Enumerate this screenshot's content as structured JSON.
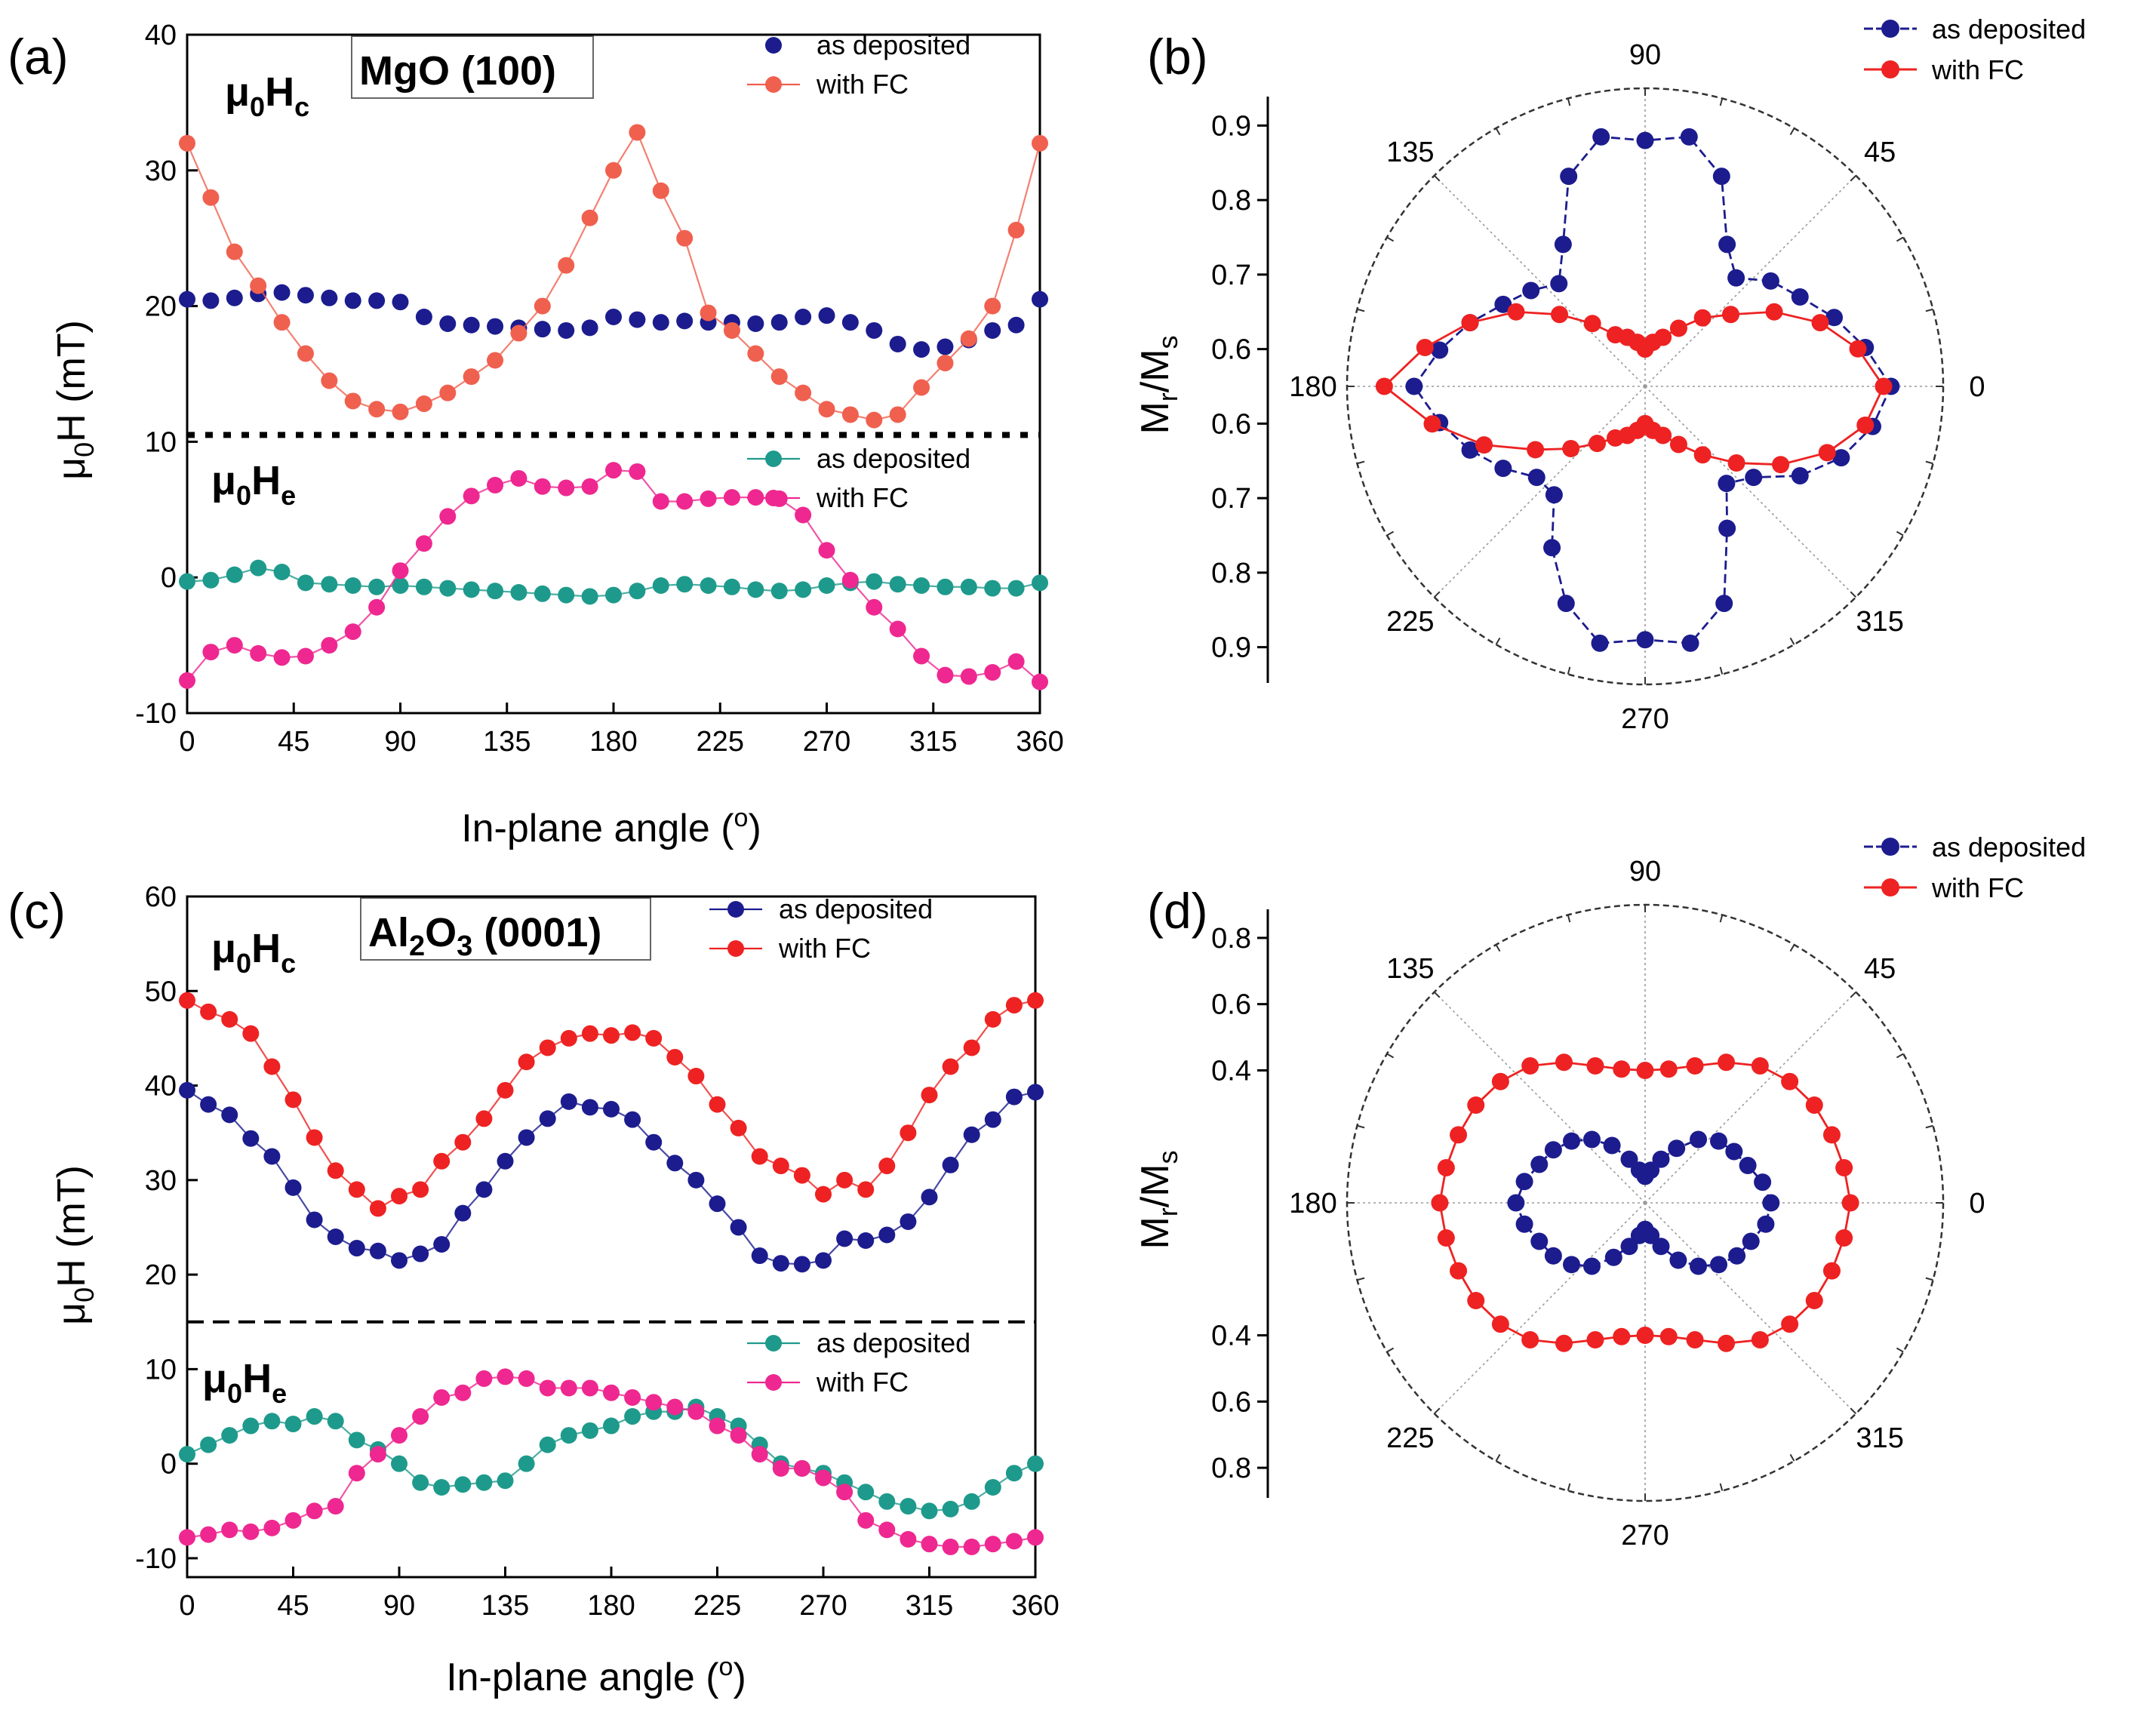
{
  "panels": {
    "a": {
      "letter": "(a)",
      "substrate": "MgO (100)",
      "hc_label": "μ0Hc",
      "he_label": "μ0He",
      "ylabel": "μ0H (mT)",
      "xlabel": "In-plane angle (o)"
    },
    "b": {
      "letter": "(b)",
      "ylabel": "Mr/Ms"
    },
    "c": {
      "letter": "(c)",
      "substrate": "Al2O3 (0001)",
      "hc_label": "μ0Hc",
      "he_label": "μ0He",
      "ylabel": "μ0H (mT)",
      "xlabel": "In-plane angle (o)"
    },
    "d": {
      "letter": "(d)",
      "ylabel": "Mr/Ms"
    }
  },
  "colors": {
    "navy": "#1c1c8f",
    "red": "#ee2222",
    "salmon": "#f0604f",
    "teal": "#1e9a8c",
    "pink": "#ee2890",
    "grid": "#9a9a9a"
  },
  "chart_data": [
    {
      "id": "a",
      "type": "scatter",
      "title": "MgO (100)",
      "xlabel": "In-plane angle (o)",
      "ylabel": "μ0H (mT)",
      "xlim": [
        0,
        360
      ],
      "ylim": [
        -10,
        40
      ],
      "xticks": [
        0,
        45,
        90,
        135,
        180,
        225,
        270,
        315,
        360
      ],
      "yticks": [
        -10,
        0,
        10,
        20,
        30,
        40
      ],
      "divider_y": 10.5,
      "legend_top": [
        "as deposited",
        "with FC"
      ],
      "legend_bottom": [
        "as deposited",
        "with FC"
      ],
      "x": [
        0,
        10,
        20,
        30,
        40,
        50,
        60,
        70,
        80,
        90,
        100,
        110,
        120,
        130,
        140,
        150,
        160,
        170,
        180,
        190,
        200,
        210,
        220,
        230,
        240,
        250,
        260,
        270,
        280,
        290,
        300,
        310,
        320,
        330,
        340,
        350,
        360
      ],
      "series": [
        {
          "name": "as deposited",
          "group": "Hc",
          "values": [
            20.5,
            20.4,
            20.6,
            20.9,
            21.0,
            20.8,
            20.6,
            20.4,
            20.4,
            20.3,
            19.2,
            18.7,
            18.6,
            18.5,
            18.4,
            18.3,
            18.2,
            18.4,
            19.2,
            19.0,
            18.8,
            18.9,
            18.8,
            18.8,
            18.7,
            18.8,
            19.2,
            19.3,
            18.8,
            18.2,
            17.2,
            16.8,
            17.0,
            17.5,
            18.2,
            18.6,
            20.5
          ]
        },
        {
          "name": "with FC",
          "group": "Hc",
          "values": [
            32.0,
            28.0,
            24.0,
            21.5,
            18.8,
            16.5,
            14.5,
            13.0,
            12.4,
            12.2,
            12.8,
            13.6,
            14.8,
            16.0,
            18.0,
            20.0,
            23.0,
            26.5,
            30.0,
            32.8,
            28.5,
            25.0,
            19.5,
            18.2,
            16.5,
            14.8,
            13.6,
            12.4,
            12.0,
            11.6,
            12.0,
            14.0,
            15.8,
            17.6,
            20.0,
            25.6,
            32.0
          ]
        },
        {
          "name": "as deposited",
          "group": "He",
          "values": [
            -0.3,
            -0.2,
            0.2,
            0.7,
            0.4,
            -0.4,
            -0.5,
            -0.6,
            -0.7,
            -0.6,
            -0.7,
            -0.8,
            -0.9,
            -1.0,
            -1.1,
            -1.2,
            -1.3,
            -1.4,
            -1.3,
            -1.0,
            -0.6,
            -0.5,
            -0.6,
            -0.7,
            -0.9,
            -1.0,
            -0.9,
            -0.6,
            -0.4,
            -0.3,
            -0.5,
            -0.6,
            -0.7,
            -0.7,
            -0.8,
            -0.8,
            -0.4
          ]
        },
        {
          "name": "with FC",
          "group": "He",
          "values": [
            -7.6,
            -5.5,
            -5.0,
            -5.6,
            -5.9,
            -5.8,
            -5.0,
            -4.0,
            -2.2,
            0.5,
            2.5,
            4.5,
            6.0,
            6.8,
            7.3,
            6.7,
            6.6,
            6.7,
            7.9,
            7.8,
            5.6,
            5.6,
            5.8,
            5.9,
            5.9,
            5.8,
            4.6,
            2.0,
            -0.2,
            -2.2,
            -3.8,
            -5.8,
            -7.2,
            -7.3,
            -7.0,
            -6.2,
            -7.7
          ]
        }
      ]
    },
    {
      "id": "b",
      "type": "polar",
      "ylabel": "Mr/Ms",
      "angle_ticks": [
        0,
        45,
        90,
        135,
        180,
        225,
        270,
        315
      ],
      "radial_ticks": [
        0.6,
        0.7,
        0.8,
        0.9
      ],
      "rlim": [
        0.55,
        0.95
      ],
      "legend": [
        "as deposited",
        "with FC"
      ],
      "theta": [
        0,
        10,
        20,
        30,
        40,
        50,
        60,
        70,
        80,
        90,
        100,
        110,
        120,
        130,
        140,
        150,
        160,
        170,
        180,
        190,
        200,
        210,
        220,
        230,
        240,
        250,
        260,
        270,
        280,
        290,
        300,
        310,
        320,
        330,
        340,
        350
      ],
      "series": [
        {
          "name": "as deposited",
          "values": [
            0.88,
            0.85,
            0.82,
            0.79,
            0.77,
            0.74,
            0.77,
            0.85,
            0.89,
            0.88,
            0.89,
            0.85,
            0.77,
            0.73,
            0.75,
            0.77,
            0.8,
            0.83,
            0.86,
            0.83,
            0.8,
            0.77,
            0.74,
            0.74,
            0.8,
            0.86,
            0.9,
            0.89,
            0.9,
            0.86,
            0.77,
            0.72,
            0.74,
            0.79,
            0.83,
            0.86
          ]
        },
        {
          "name": "with FC",
          "values": [
            0.87,
            0.84,
            0.8,
            0.75,
            0.7,
            0.67,
            0.64,
            0.62,
            0.61,
            0.6,
            0.61,
            0.62,
            0.63,
            0.66,
            0.7,
            0.75,
            0.8,
            0.85,
            0.9,
            0.84,
            0.78,
            0.72,
            0.68,
            0.65,
            0.63,
            0.62,
            0.61,
            0.6,
            0.61,
            0.62,
            0.64,
            0.67,
            0.71,
            0.76,
            0.81,
            0.85
          ]
        }
      ]
    },
    {
      "id": "c",
      "type": "scatter",
      "title": "Al2O3 (0001)",
      "xlabel": "In-plane angle (o)",
      "ylabel": "μ0H (mT)",
      "xlim": [
        0,
        360
      ],
      "ylim": [
        -12,
        60
      ],
      "xticks": [
        0,
        45,
        90,
        135,
        180,
        225,
        270,
        315,
        360
      ],
      "yticks": [
        -10,
        0,
        10,
        20,
        30,
        40,
        50,
        60
      ],
      "divider_y": 15,
      "legend_top": [
        "as deposited",
        "with FC"
      ],
      "legend_bottom": [
        "as deposited",
        "with FC"
      ],
      "x": [
        0,
        9,
        18,
        27,
        36,
        45,
        54,
        63,
        72,
        81,
        90,
        99,
        108,
        117,
        126,
        135,
        144,
        153,
        162,
        171,
        180,
        189,
        198,
        207,
        216,
        225,
        234,
        243,
        252,
        261,
        270,
        279,
        288,
        297,
        306,
        315,
        324,
        333,
        342,
        351,
        360
      ],
      "series": [
        {
          "name": "as deposited",
          "group": "Hc",
          "values": [
            39.5,
            38.0,
            36.9,
            34.4,
            32.5,
            29.2,
            25.8,
            24.0,
            22.8,
            22.5,
            21.5,
            22.2,
            23.2,
            26.5,
            29.0,
            32.0,
            34.5,
            36.5,
            38.3,
            37.7,
            37.5,
            36.4,
            34.0,
            31.8,
            30.0,
            27.5,
            25.0,
            22.0,
            21.2,
            21.1,
            21.5,
            23.8,
            23.6,
            24.2,
            25.6,
            28.2,
            31.6,
            34.8,
            36.4,
            38.8,
            39.3
          ]
        },
        {
          "name": "with FC",
          "group": "Hc",
          "values": [
            49.0,
            47.8,
            47.0,
            45.5,
            42.0,
            38.5,
            34.5,
            31.0,
            29.0,
            27.0,
            28.3,
            29.0,
            32.0,
            34.0,
            36.5,
            39.5,
            42.5,
            44.0,
            45.0,
            45.5,
            45.3,
            45.6,
            45.0,
            43.0,
            41.0,
            38.0,
            35.5,
            32.5,
            31.5,
            30.5,
            28.5,
            30.0,
            29.0,
            31.5,
            35.0,
            39.0,
            42.0,
            44.0,
            47.0,
            48.5,
            49.0
          ]
        },
        {
          "name": "as deposited",
          "group": "He",
          "values": [
            1.0,
            2.0,
            3.0,
            4.0,
            4.5,
            4.2,
            5.0,
            4.5,
            2.5,
            1.5,
            0.0,
            -2.0,
            -2.5,
            -2.2,
            -2.0,
            -1.8,
            0.0,
            2.0,
            3.0,
            3.5,
            4.0,
            5.0,
            5.5,
            5.5,
            6.0,
            5.0,
            4.0,
            2.0,
            0.0,
            -0.5,
            -1.0,
            -2.0,
            -3.0,
            -4.0,
            -4.5,
            -5.0,
            -4.8,
            -4.0,
            -2.5,
            -1.0,
            0.0
          ]
        },
        {
          "name": "with FC",
          "group": "He",
          "values": [
            -7.8,
            -7.5,
            -7.0,
            -7.2,
            -6.8,
            -6.0,
            -5.0,
            -4.5,
            -1.0,
            1.0,
            3.0,
            5.0,
            7.0,
            7.5,
            9.0,
            9.2,
            9.0,
            8.0,
            8.0,
            8.0,
            7.5,
            7.0,
            6.5,
            6.0,
            5.5,
            4.0,
            3.0,
            1.0,
            -0.5,
            -0.5,
            -1.5,
            -3.0,
            -6.0,
            -7.0,
            -8.0,
            -8.5,
            -8.8,
            -8.8,
            -8.5,
            -8.2,
            -7.8
          ]
        }
      ]
    },
    {
      "id": "d",
      "type": "polar",
      "ylabel": "Mr/Ms",
      "angle_ticks": [
        0,
        45,
        90,
        135,
        180,
        225,
        270,
        315
      ],
      "radial_ticks": [
        0.4,
        0.6,
        0.8
      ],
      "rlim": [
        0.0,
        0.9
      ],
      "legend": [
        "as deposited",
        "with FC"
      ],
      "theta": [
        0,
        10,
        20,
        30,
        40,
        50,
        60,
        70,
        80,
        90,
        100,
        110,
        120,
        130,
        140,
        150,
        160,
        170,
        180,
        190,
        200,
        210,
        220,
        230,
        240,
        250,
        260,
        270,
        280,
        290,
        300,
        310,
        320,
        330,
        340,
        350
      ],
      "series": [
        {
          "name": "as deposited",
          "values": [
            0.38,
            0.36,
            0.33,
            0.31,
            0.29,
            0.25,
            0.19,
            0.14,
            0.1,
            0.08,
            0.1,
            0.14,
            0.2,
            0.25,
            0.29,
            0.32,
            0.34,
            0.37,
            0.39,
            0.37,
            0.34,
            0.32,
            0.29,
            0.25,
            0.19,
            0.14,
            0.1,
            0.08,
            0.1,
            0.14,
            0.2,
            0.25,
            0.29,
            0.32,
            0.34,
            0.37
          ]
        },
        {
          "name": "with FC",
          "values": [
            0.62,
            0.61,
            0.6,
            0.59,
            0.57,
            0.54,
            0.49,
            0.44,
            0.41,
            0.4,
            0.41,
            0.44,
            0.49,
            0.54,
            0.57,
            0.59,
            0.6,
            0.61,
            0.62,
            0.61,
            0.6,
            0.59,
            0.57,
            0.54,
            0.49,
            0.44,
            0.41,
            0.4,
            0.41,
            0.44,
            0.49,
            0.54,
            0.57,
            0.59,
            0.6,
            0.61
          ]
        }
      ]
    }
  ]
}
